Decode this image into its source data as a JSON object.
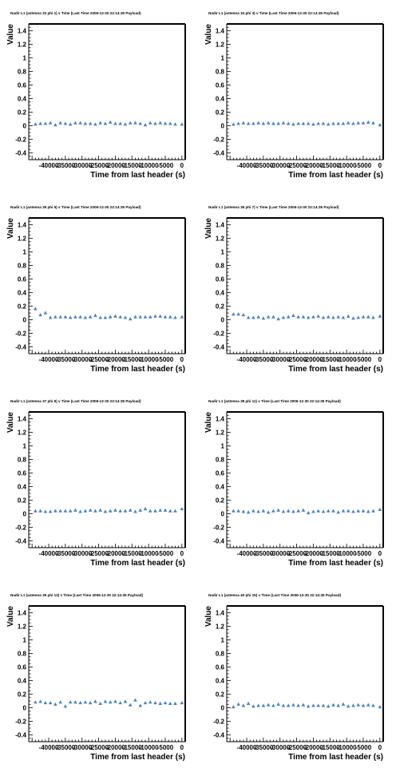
{
  "chart_data": [
    {
      "type": "scatter",
      "title": "Nadir L1 (antenna 33 phi 1) v Time (Last Time 2006-12-30 22:14:35 Payload)",
      "xlabel": "Time from last header (s)",
      "ylabel": "Value",
      "xlim": [
        -46000,
        1000
      ],
      "ylim": [
        -0.5,
        1.5
      ],
      "xticks": [
        -40000,
        -35000,
        -30000,
        -25000,
        -20000,
        -15000,
        -10000,
        -5000,
        0
      ],
      "xtick_labels": [
        "-40000",
        "-35000",
        "-30000",
        "-25000",
        "-20000",
        "-15000",
        "-10000",
        "-5000",
        "0"
      ],
      "yticks": [
        -0.4,
        -0.2,
        0,
        0.2,
        0.4,
        0.6,
        0.8,
        1,
        1.2,
        1.4
      ],
      "ytick_labels": [
        "-0.4",
        "-0.2",
        "0",
        "0.2",
        "0.4",
        "0.6",
        "0.8",
        "1",
        "1.2",
        "1.4"
      ],
      "marker_color": "#4f81bd",
      "x": [
        -44000,
        -42500,
        -41000,
        -39500,
        -38000,
        -36500,
        -35000,
        -33500,
        -32000,
        -30500,
        -29000,
        -27500,
        -26000,
        -24500,
        -23000,
        -21500,
        -20000,
        -18500,
        -17000,
        -15500,
        -14000,
        -12500,
        -11000,
        -9500,
        -8000,
        -6500,
        -5000,
        -3500,
        -2000,
        0
      ],
      "y": [
        0.02,
        0.03,
        0.03,
        0.04,
        0.01,
        0.04,
        0.03,
        0.02,
        0.04,
        0.04,
        0.03,
        0.03,
        0.02,
        0.04,
        0.03,
        0.05,
        0.03,
        0.03,
        0.02,
        0.04,
        0.04,
        0.03,
        0.01,
        0.04,
        0.03,
        0.04,
        0.03,
        0.03,
        0.02,
        0.02
      ]
    },
    {
      "type": "scatter",
      "title": "Nadir L1 (antenna 34 phi 3) v Time (Last Time 2006-12-30 22:14:35 Payload)",
      "xlabel": "Time from last header (s)",
      "ylabel": "Value",
      "xlim": [
        -46000,
        1000
      ],
      "ylim": [
        -0.5,
        1.5
      ],
      "xticks": [
        -40000,
        -35000,
        -30000,
        -25000,
        -20000,
        -15000,
        -10000,
        -5000,
        0
      ],
      "xtick_labels": [
        "-40000",
        "-35000",
        "-30000",
        "-25000",
        "-20000",
        "-15000",
        "-10000",
        "-5000",
        "0"
      ],
      "yticks": [
        -0.4,
        -0.2,
        0,
        0.2,
        0.4,
        0.6,
        0.8,
        1,
        1.2,
        1.4
      ],
      "ytick_labels": [
        "-0.4",
        "-0.2",
        "0",
        "0.2",
        "0.4",
        "0.6",
        "0.8",
        "1",
        "1.2",
        "1.4"
      ],
      "marker_color": "#4f81bd",
      "x": [
        -44000,
        -42500,
        -41000,
        -39500,
        -38000,
        -36500,
        -35000,
        -33500,
        -32000,
        -30500,
        -29000,
        -27500,
        -26000,
        -24500,
        -23000,
        -21500,
        -20000,
        -18500,
        -17000,
        -15500,
        -14000,
        -12500,
        -11000,
        -9500,
        -8000,
        -6500,
        -5000,
        -3500,
        -2000,
        0
      ],
      "y": [
        0.02,
        0.03,
        0.04,
        0.03,
        0.03,
        0.04,
        0.03,
        0.04,
        0.03,
        0.03,
        0.04,
        0.03,
        0.02,
        0.03,
        0.03,
        0.03,
        0.02,
        0.03,
        0.03,
        0.02,
        0.03,
        0.03,
        0.03,
        0.04,
        0.03,
        0.04,
        0.04,
        0.05,
        0.04,
        0.01
      ]
    },
    {
      "type": "scatter",
      "title": "Nadir L1 (antenna 35 phi 5) v Time (Last Time 2006-12-30 22:14:35 Payload)",
      "xlabel": "Time from last header (s)",
      "ylabel": "Value",
      "xlim": [
        -46000,
        1000
      ],
      "ylim": [
        -0.5,
        1.5
      ],
      "xticks": [
        -40000,
        -35000,
        -30000,
        -25000,
        -20000,
        -15000,
        -10000,
        -5000,
        0
      ],
      "xtick_labels": [
        "-40000",
        "-35000",
        "-30000",
        "-25000",
        "-20000",
        "-15000",
        "-10000",
        "-5000",
        "0"
      ],
      "yticks": [
        -0.4,
        -0.2,
        0,
        0.2,
        0.4,
        0.6,
        0.8,
        1,
        1.2,
        1.4
      ],
      "ytick_labels": [
        "-0.4",
        "-0.2",
        "0",
        "0.2",
        "0.4",
        "0.6",
        "0.8",
        "1",
        "1.2",
        "1.4"
      ],
      "marker_color": "#4f81bd",
      "x": [
        -44000,
        -42500,
        -41000,
        -39500,
        -38000,
        -36500,
        -35000,
        -33500,
        -32000,
        -30500,
        -29000,
        -27500,
        -26000,
        -24500,
        -23000,
        -21500,
        -20000,
        -18500,
        -17000,
        -15500,
        -14000,
        -12500,
        -11000,
        -9500,
        -8000,
        -6500,
        -5000,
        -3500,
        -2000,
        0
      ],
      "y": [
        0.16,
        0.07,
        0.1,
        0.03,
        0.04,
        0.04,
        0.04,
        0.03,
        0.04,
        0.04,
        0.03,
        0.04,
        0.06,
        0.03,
        0.03,
        0.04,
        0.05,
        0.04,
        0.03,
        0.01,
        0.04,
        0.04,
        0.04,
        0.04,
        0.05,
        0.05,
        0.04,
        0.04,
        0.03,
        0.04
      ]
    },
    {
      "type": "scatter",
      "title": "Nadir L1 (antenna 36 phi 7) v Time (Last Time 2006-12-30 22:14:35 Payload)",
      "xlabel": "Time from last header (s)",
      "ylabel": "Value",
      "xlim": [
        -46000,
        1000
      ],
      "ylim": [
        -0.5,
        1.5
      ],
      "xticks": [
        -40000,
        -35000,
        -30000,
        -25000,
        -20000,
        -15000,
        -10000,
        -5000,
        0
      ],
      "xtick_labels": [
        "-40000",
        "-35000",
        "-30000",
        "-25000",
        "-20000",
        "-15000",
        "-10000",
        "-5000",
        "0"
      ],
      "yticks": [
        -0.4,
        -0.2,
        0,
        0.2,
        0.4,
        0.6,
        0.8,
        1,
        1.2,
        1.4
      ],
      "ytick_labels": [
        "-0.4",
        "-0.2",
        "0",
        "0.2",
        "0.4",
        "0.6",
        "0.8",
        "1",
        "1.2",
        "1.4"
      ],
      "marker_color": "#4f81bd",
      "x": [
        -44000,
        -42500,
        -41000,
        -39500,
        -38000,
        -36500,
        -35000,
        -33500,
        -32000,
        -30500,
        -29000,
        -27500,
        -26000,
        -24500,
        -23000,
        -21500,
        -20000,
        -18500,
        -17000,
        -15500,
        -14000,
        -12500,
        -11000,
        -9500,
        -8000,
        -6500,
        -5000,
        -3500,
        -2000,
        0
      ],
      "y": [
        0.08,
        0.08,
        0.07,
        0.03,
        0.03,
        0.04,
        0.02,
        0.04,
        0.04,
        0.01,
        0.03,
        0.04,
        0.06,
        0.04,
        0.04,
        0.03,
        0.04,
        0.05,
        0.03,
        0.04,
        0.03,
        0.04,
        0.03,
        0.05,
        0.02,
        0.03,
        0.04,
        0.04,
        0.03,
        0.05
      ]
    },
    {
      "type": "scatter",
      "title": "Nadir L1 (antenna 37 phi 9) v Time (Last Time 2006-12-30 22:14:35 Payload)",
      "xlabel": "Time from last header (s)",
      "ylabel": "Value",
      "xlim": [
        -46000,
        1000
      ],
      "ylim": [
        -0.5,
        1.5
      ],
      "xticks": [
        -40000,
        -35000,
        -30000,
        -25000,
        -20000,
        -15000,
        -10000,
        -5000,
        0
      ],
      "xtick_labels": [
        "-40000",
        "-35000",
        "-30000",
        "-25000",
        "-20000",
        "-15000",
        "-10000",
        "-5000",
        "0"
      ],
      "yticks": [
        -0.4,
        -0.2,
        0,
        0.2,
        0.4,
        0.6,
        0.8,
        1,
        1.2,
        1.4
      ],
      "ytick_labels": [
        "-0.4",
        "-0.2",
        "0",
        "0.2",
        "0.4",
        "0.6",
        "0.8",
        "1",
        "1.2",
        "1.4"
      ],
      "marker_color": "#4f81bd",
      "x": [
        -44000,
        -42500,
        -41000,
        -39500,
        -38000,
        -36500,
        -35000,
        -33500,
        -32000,
        -30500,
        -29000,
        -27500,
        -26000,
        -24500,
        -23000,
        -21500,
        -20000,
        -18500,
        -17000,
        -15500,
        -14000,
        -12500,
        -11000,
        -9500,
        -8000,
        -6500,
        -5000,
        -3500,
        -2000,
        0
      ],
      "y": [
        0.04,
        0.04,
        0.03,
        0.03,
        0.04,
        0.04,
        0.04,
        0.04,
        0.05,
        0.03,
        0.04,
        0.05,
        0.04,
        0.05,
        0.03,
        0.04,
        0.05,
        0.04,
        0.04,
        0.05,
        0.03,
        0.05,
        0.07,
        0.04,
        0.04,
        0.05,
        0.05,
        0.04,
        0.04,
        0.07
      ]
    },
    {
      "type": "scatter",
      "title": "Nadir L1 (antenna 38 phi 11) v Time (Last Time 2006-12-30 22:14:35 Payload)",
      "xlabel": "Time from last header (s)",
      "ylabel": "Value",
      "xlim": [
        -46000,
        1000
      ],
      "ylim": [
        -0.5,
        1.5
      ],
      "xticks": [
        -40000,
        -35000,
        -30000,
        -25000,
        -20000,
        -15000,
        -10000,
        -5000,
        0
      ],
      "xtick_labels": [
        "-40000",
        "-35000",
        "-30000",
        "-25000",
        "-20000",
        "-15000",
        "-10000",
        "-5000",
        "0"
      ],
      "yticks": [
        -0.4,
        -0.2,
        0,
        0.2,
        0.4,
        0.6,
        0.8,
        1,
        1.2,
        1.4
      ],
      "ytick_labels": [
        "-0.4",
        "-0.2",
        "0",
        "0.2",
        "0.4",
        "0.6",
        "0.8",
        "1",
        "1.2",
        "1.4"
      ],
      "marker_color": "#4f81bd",
      "x": [
        -44000,
        -42500,
        -41000,
        -39500,
        -38000,
        -36500,
        -35000,
        -33500,
        -32000,
        -30500,
        -29000,
        -27500,
        -26000,
        -24500,
        -23000,
        -21500,
        -20000,
        -18500,
        -17000,
        -15500,
        -14000,
        -12500,
        -11000,
        -9500,
        -8000,
        -6500,
        -5000,
        -3500,
        -2000,
        0
      ],
      "y": [
        0.04,
        0.04,
        0.03,
        0.02,
        0.04,
        0.03,
        0.04,
        0.02,
        0.04,
        0.05,
        0.03,
        0.04,
        0.03,
        0.04,
        0.05,
        0.01,
        0.03,
        0.04,
        0.03,
        0.04,
        0.04,
        0.02,
        0.04,
        0.04,
        0.03,
        0.04,
        0.04,
        0.03,
        0.04,
        0.06
      ]
    },
    {
      "type": "scatter",
      "title": "Nadir L1 (antenna 39 phi 13) v Time (Last Time 2006-12-30 22:14:35 Payload)",
      "xlabel": "Time from last header (s)",
      "ylabel": "Value",
      "xlim": [
        -46000,
        1000
      ],
      "ylim": [
        -0.5,
        1.5
      ],
      "xticks": [
        -40000,
        -35000,
        -30000,
        -25000,
        -20000,
        -15000,
        -10000,
        -5000,
        0
      ],
      "xtick_labels": [
        "-40000",
        "-35000",
        "-30000",
        "-25000",
        "-20000",
        "-15000",
        "-10000",
        "-5000",
        "0"
      ],
      "yticks": [
        -0.4,
        -0.2,
        0,
        0.2,
        0.4,
        0.6,
        0.8,
        1,
        1.2,
        1.4
      ],
      "ytick_labels": [
        "-0.4",
        "-0.2",
        "0",
        "0.2",
        "0.4",
        "0.6",
        "0.8",
        "1",
        "1.2",
        "1.4"
      ],
      "marker_color": "#4f81bd",
      "x": [
        -44000,
        -42500,
        -41000,
        -39500,
        -38000,
        -36500,
        -35000,
        -33500,
        -32000,
        -30500,
        -29000,
        -27500,
        -26000,
        -24500,
        -23000,
        -21500,
        -20000,
        -18500,
        -17000,
        -15500,
        -14000,
        -12500,
        -11000,
        -9500,
        -8000,
        -6500,
        -5000,
        -3500,
        -2000,
        0
      ],
      "y": [
        0.08,
        0.09,
        0.07,
        0.07,
        0.05,
        0.08,
        0.02,
        0.08,
        0.08,
        0.07,
        0.08,
        0.07,
        0.09,
        0.06,
        0.09,
        0.08,
        0.09,
        0.07,
        0.09,
        0.04,
        0.11,
        0.03,
        0.07,
        0.08,
        0.07,
        0.06,
        0.07,
        0.06,
        0.06,
        0.07
      ]
    },
    {
      "type": "scatter",
      "title": "Nadir L1 (antenna 40 phi 15) v Time (Last Time 2006-12-30 22:14:35 Payload)",
      "xlabel": "Time from last header (s)",
      "ylabel": "Value",
      "xlim": [
        -46000,
        1000
      ],
      "ylim": [
        -0.5,
        1.5
      ],
      "xticks": [
        -40000,
        -35000,
        -30000,
        -25000,
        -20000,
        -15000,
        -10000,
        -5000,
        0
      ],
      "xtick_labels": [
        "-40000",
        "-35000",
        "-30000",
        "-25000",
        "-20000",
        "-15000",
        "-10000",
        "-5000",
        "0"
      ],
      "yticks": [
        -0.4,
        -0.2,
        0,
        0.2,
        0.4,
        0.6,
        0.8,
        1,
        1.2,
        1.4
      ],
      "ytick_labels": [
        "-0.4",
        "-0.2",
        "0",
        "0.2",
        "0.4",
        "0.6",
        "0.8",
        "1",
        "1.2",
        "1.4"
      ],
      "marker_color": "#4f81bd",
      "x": [
        -44000,
        -42500,
        -41000,
        -39500,
        -38000,
        -36500,
        -35000,
        -33500,
        -32000,
        -30500,
        -29000,
        -27500,
        -26000,
        -24500,
        -23000,
        -21500,
        -20000,
        -18500,
        -17000,
        -15500,
        -14000,
        -12500,
        -11000,
        -9500,
        -8000,
        -6500,
        -5000,
        -3500,
        -2000,
        0
      ],
      "y": [
        0.01,
        0.05,
        0.03,
        0.06,
        0.02,
        0.03,
        0.03,
        0.04,
        0.03,
        0.05,
        0.03,
        0.03,
        0.04,
        0.03,
        0.04,
        0.02,
        0.03,
        0.03,
        0.03,
        0.02,
        0.04,
        0.03,
        0.05,
        0.02,
        0.03,
        0.04,
        0.03,
        0.04,
        0.03,
        0.01
      ]
    }
  ]
}
